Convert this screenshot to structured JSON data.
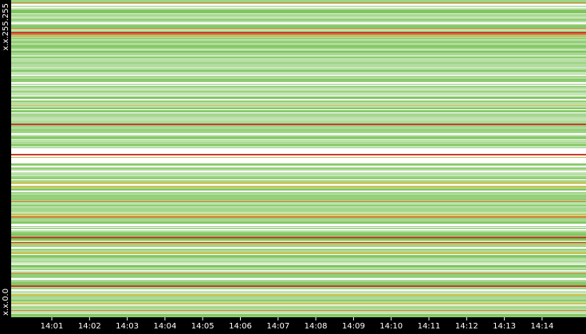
{
  "chart_data": {
    "type": "heatmap",
    "y_axis_labels": {
      "top": "x.x.255.255",
      "bottom": "x.x.0.0"
    },
    "x_ticks": [
      "14:01",
      "14:02",
      "14:03",
      "14:04",
      "14:05",
      "14:06",
      "14:07",
      "14:08",
      "14:09",
      "14:10",
      "14:11",
      "14:12",
      "14:13",
      "14:14"
    ],
    "colors": {
      "background": "#000000",
      "empty_cell": "#ffffff",
      "low": "#7cc45a",
      "mid": "#c8b020",
      "high": "#d86a18",
      "peak": "#c02818",
      "tick_text": "#ffffff"
    },
    "grid": false,
    "legend": "none"
  }
}
